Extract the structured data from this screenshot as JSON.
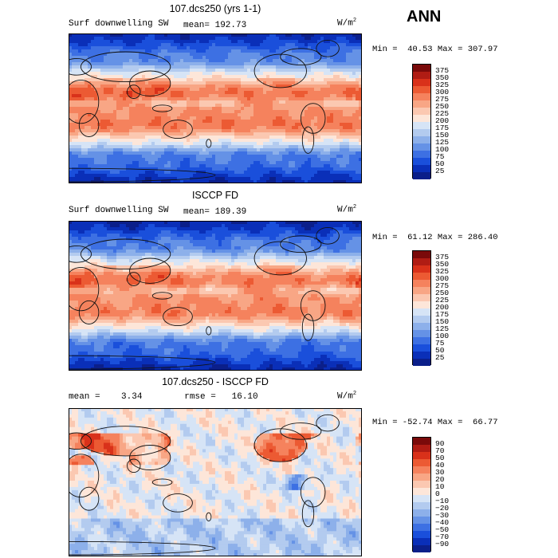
{
  "season": "ANN",
  "panels": [
    {
      "title": "107.dcs250 (yrs 1-1)",
      "field_label": "Surf downwelling SW",
      "stat_text": "mean= 192.73",
      "unit_base": "W/m",
      "unit_exp": "2",
      "minmax": "Min =  40.53 Max = 307.97",
      "levels": [
        "375",
        "350",
        "325",
        "300",
        "275",
        "250",
        "225",
        "200",
        "175",
        "150",
        "125",
        "100",
        "75",
        "50",
        "25"
      ],
      "colors": [
        "#7a0a0a",
        "#b01c14",
        "#d9311a",
        "#ec5a33",
        "#f5825d",
        "#f8a685",
        "#fbc8b1",
        "#fde6d9",
        "#d6e4f6",
        "#b3cbef",
        "#8db0ea",
        "#6592e6",
        "#3d70e3",
        "#1a4fdb",
        "#0a2fb8",
        "#0b1f8a"
      ],
      "field": "sw_model"
    },
    {
      "title": "ISCCP FD",
      "field_label": "Surf downwelling SW",
      "stat_text": "mean= 189.39",
      "unit_base": "W/m",
      "unit_exp": "2",
      "minmax": "Min =  61.12 Max = 286.40",
      "levels": [
        "375",
        "350",
        "325",
        "300",
        "275",
        "250",
        "225",
        "200",
        "175",
        "150",
        "125",
        "100",
        "75",
        "50",
        "25"
      ],
      "colors": [
        "#7a0a0a",
        "#b01c14",
        "#d9311a",
        "#ec5a33",
        "#f5825d",
        "#f8a685",
        "#fbc8b1",
        "#fde6d9",
        "#d6e4f6",
        "#b3cbef",
        "#8db0ea",
        "#6592e6",
        "#3d70e3",
        "#1a4fdb",
        "#0a2fb8",
        "#0b1f8a"
      ],
      "field": "sw_obs"
    },
    {
      "title": "107.dcs250 - ISCCP FD",
      "field_label": "",
      "stat_text": "mean =    3.34        rmse =   16.10",
      "unit_base": "W/m",
      "unit_exp": "2",
      "minmax": "Min = -52.74 Max =  66.77",
      "levels": [
        "90",
        "70",
        "50",
        "40",
        "30",
        "20",
        "10",
        "0",
        "−10",
        "−20",
        "−30",
        "−40",
        "−50",
        "−70",
        "−90"
      ],
      "colors": [
        "#7a0a0a",
        "#b01c14",
        "#d9311a",
        "#ec5a33",
        "#f5825d",
        "#f8a685",
        "#fbc8b1",
        "#fde6d9",
        "#d6e4f6",
        "#b3cbef",
        "#8db0ea",
        "#6592e6",
        "#3d70e3",
        "#1a4fdb",
        "#0a2fb8",
        "#0b1f8a"
      ],
      "field": "sw_diff"
    }
  ]
}
